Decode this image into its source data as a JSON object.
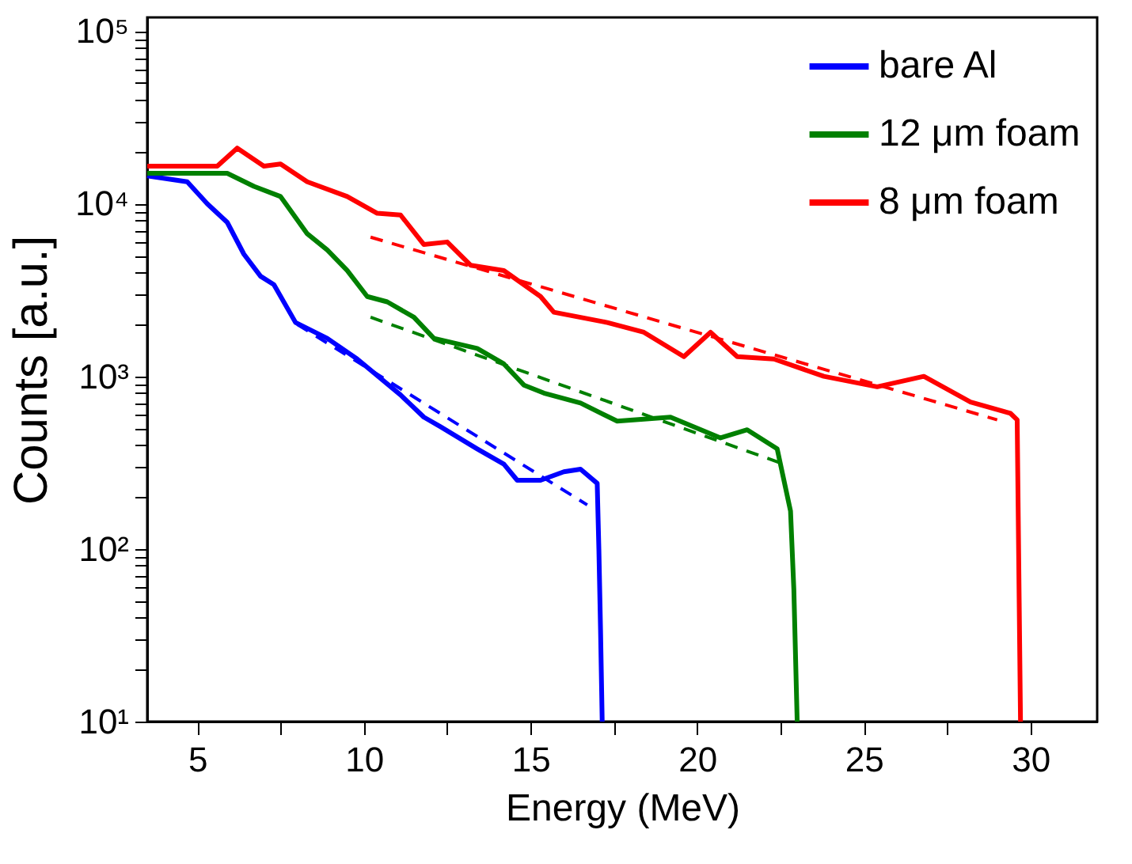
{
  "chart_data": {
    "type": "line",
    "xlabel": "Energy (MeV)",
    "ylabel": "Counts [a.u.]",
    "log": "y",
    "xlim": [
      3.5,
      32
    ],
    "ylim": [
      10,
      120000
    ],
    "xticks": [
      5,
      {
        "value": 7.5,
        "label": null
      },
      10,
      {
        "value": 12.5,
        "label": null
      },
      15,
      {
        "value": 17.5,
        "label": null
      },
      20,
      {
        "value": 22.5,
        "label": null
      },
      25,
      {
        "value": 27.5,
        "label": null
      },
      30
    ],
    "yticks": [
      {
        "value": 10,
        "label": "10¹"
      },
      {
        "value": 20,
        "label": null
      },
      {
        "value": 30,
        "label": null
      },
      {
        "value": 40,
        "label": null
      },
      {
        "value": 50,
        "label": null
      },
      {
        "value": 60,
        "label": null
      },
      {
        "value": 70,
        "label": null
      },
      {
        "value": 80,
        "label": null
      },
      {
        "value": 90,
        "label": null
      },
      {
        "value": 100,
        "label": "10²"
      },
      {
        "value": 200,
        "label": null
      },
      {
        "value": 300,
        "label": null
      },
      {
        "value": 400,
        "label": null
      },
      {
        "value": 500,
        "label": null
      },
      {
        "value": 600,
        "label": null
      },
      {
        "value": 700,
        "label": null
      },
      {
        "value": 800,
        "label": null
      },
      {
        "value": 900,
        "label": null
      },
      {
        "value": 1000,
        "label": "10³"
      },
      {
        "value": 2000,
        "label": null
      },
      {
        "value": 3000,
        "label": null
      },
      {
        "value": 4000,
        "label": null
      },
      {
        "value": 5000,
        "label": null
      },
      {
        "value": 6000,
        "label": null
      },
      {
        "value": 7000,
        "label": null
      },
      {
        "value": 8000,
        "label": null
      },
      {
        "value": 9000,
        "label": null
      },
      {
        "value": 10000,
        "label": "10⁴"
      },
      {
        "value": 20000,
        "label": null
      },
      {
        "value": 30000,
        "label": null
      },
      {
        "value": 40000,
        "label": null
      },
      {
        "value": 50000,
        "label": null
      },
      {
        "value": 60000,
        "label": null
      },
      {
        "value": 70000,
        "label": null
      },
      {
        "value": 80000,
        "label": null
      },
      {
        "value": 90000,
        "label": null
      },
      {
        "value": 100000,
        "label": "10⁵"
      }
    ],
    "grid": false,
    "legend": "top right",
    "marker": "none",
    "series": [
      {
        "name": "bare Al",
        "color": "#0000ff",
        "line_style": "solid",
        "x": [
          3.5,
          4.7,
          5.3,
          5.9,
          6.4,
          6.9,
          7.3,
          7.95,
          8.9,
          9.8,
          11.1,
          11.8,
          12.3,
          13.4,
          14.2,
          14.6,
          15.3,
          16.0,
          16.5,
          17.0,
          17.05,
          17.1,
          17.15
        ],
        "values": [
          14500,
          13400,
          10000,
          7800,
          5100,
          3800,
          3400,
          2050,
          1660,
          1260,
          780,
          580,
          510,
          380,
          310,
          250,
          250,
          280,
          290,
          240,
          100,
          34,
          10
        ]
      },
      {
        "name": "12 μm foam",
        "color": "#008000",
        "line_style": "solid",
        "x": [
          3.5,
          5.9,
          6.7,
          7.5,
          8.3,
          8.9,
          9.5,
          10.1,
          10.7,
          11.5,
          12.1,
          13.4,
          14.2,
          14.8,
          15.4,
          16.5,
          17.6,
          19.2,
          20.7,
          21.5,
          22.4,
          22.8,
          22.9,
          23.0
        ],
        "values": [
          15000,
          15000,
          12600,
          11000,
          6700,
          5400,
          4100,
          2900,
          2700,
          2200,
          1660,
          1450,
          1180,
          890,
          800,
          700,
          550,
          580,
          440,
          490,
          380,
          166,
          58,
          10
        ]
      },
      {
        "name": "8 μm foam",
        "color": "#ff0000",
        "line_style": "solid",
        "x": [
          3.5,
          5.6,
          6.2,
          7.0,
          7.5,
          8.3,
          9.5,
          10.4,
          11.1,
          11.8,
          12.5,
          13.2,
          14.2,
          15.3,
          15.7,
          17.3,
          18.4,
          19.6,
          20.4,
          21.2,
          22.3,
          23.8,
          25.4,
          26.8,
          28.2,
          29.4,
          29.6,
          29.7
        ],
        "values": [
          16500,
          16500,
          21000,
          16500,
          17000,
          13400,
          11000,
          8800,
          8600,
          5800,
          6000,
          4400,
          4100,
          2900,
          2350,
          2050,
          1800,
          1300,
          1800,
          1300,
          1260,
          1000,
          870,
          1000,
          710,
          610,
          560,
          10
        ]
      },
      {
        "color": "#0000ff",
        "line_style": "dashed",
        "x": [
          8.0,
          16.7
        ],
        "values": [
          2000,
          180
        ]
      },
      {
        "color": "#008000",
        "line_style": "dashed",
        "x": [
          10.2,
          22.6
        ],
        "values": [
          2200,
          310
        ]
      },
      {
        "color": "#ff0000",
        "line_style": "dashed",
        "x": [
          10.2,
          29.0
        ],
        "values": [
          6400,
          560
        ]
      }
    ]
  }
}
